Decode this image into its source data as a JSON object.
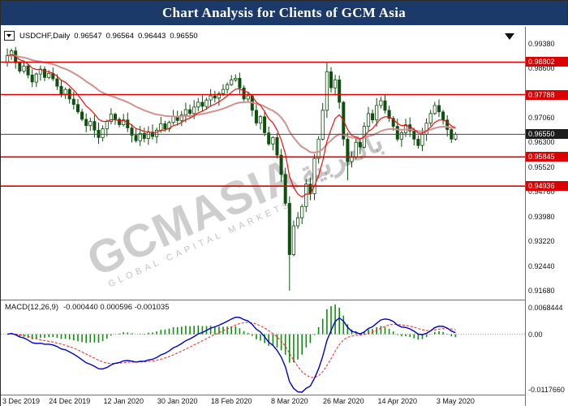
{
  "title_bar": {
    "title": "Chart Analysis for Clients of GCM Asia",
    "bg": "#1b3a6a"
  },
  "symbol_info": {
    "symbol": "USDCHF,Daily",
    "open": "0.96547",
    "high": "0.96564",
    "low": "0.96443",
    "close": "0.96550"
  },
  "watermark": {
    "main": "GCMASIA",
    "arabic": "بالعربية",
    "sub": "GLOBAL CAPITAL MARKETS"
  },
  "colors": {
    "title_bg": "#1b3a6a",
    "bull": "#ffffff",
    "bear": "#0f4f0f",
    "wick": "#0f4f0f",
    "ma_fast": "#ee1111",
    "ma_slow": "#d49090",
    "level": "#e00000",
    "current": "#444444",
    "macd_line": "#0000cc",
    "signal_line": "#ee3333",
    "histogram": "#0f8f0f",
    "badge_red": "#dd0000",
    "badge_dark": "#1c1c1c"
  },
  "chart_data": {
    "type": "candlestick",
    "symbol": "USDCHF",
    "timeframe": "Daily",
    "ohlc_current": {
      "open": 0.96547,
      "high": 0.96564,
      "low": 0.96443,
      "close": 0.9655
    },
    "current_price": 0.9655,
    "horizontal_lines": [
      0.98802,
      0.97788,
      0.95845,
      0.94936
    ],
    "y_axis_ticks": [
      "0.99380",
      "0.98600",
      "0.97060",
      "0.96300",
      "0.95520",
      "0.94760",
      "0.93980",
      "0.93220",
      "0.92440",
      "0.91680"
    ],
    "scale": {
      "price_top": 0.9975,
      "price_bottom": 0.915
    },
    "x_labels": [
      {
        "i": 0,
        "t": "3 Dec 2019"
      },
      {
        "i": 15,
        "t": "24 Dec 2019"
      },
      {
        "i": 28,
        "t": "12 Jan 2020"
      },
      {
        "i": 41,
        "t": "30 Jan 2020"
      },
      {
        "i": 54,
        "t": "18 Feb 2020"
      },
      {
        "i": 68,
        "t": "8 Mar 2020"
      },
      {
        "i": 81,
        "t": "26 Mar 2020"
      },
      {
        "i": 94,
        "t": "14 Apr 2020"
      },
      {
        "i": 108,
        "t": "3 May 2020"
      }
    ],
    "first_open": 0.988,
    "closes": [
      0.99,
      0.9915,
      0.9878,
      0.9852,
      0.9868,
      0.984,
      0.9818,
      0.9843,
      0.9858,
      0.9832,
      0.9845,
      0.9828,
      0.9805,
      0.978,
      0.9795,
      0.9765,
      0.9748,
      0.9725,
      0.9702,
      0.9682,
      0.9695,
      0.9668,
      0.9645,
      0.9672,
      0.9695,
      0.9718,
      0.9702,
      0.9685,
      0.97,
      0.9675,
      0.9652,
      0.9635,
      0.9658,
      0.9642,
      0.9662,
      0.9648,
      0.9668,
      0.9688,
      0.9672,
      0.9692,
      0.9712,
      0.9698,
      0.9715,
      0.9732,
      0.972,
      0.974,
      0.9755,
      0.9742,
      0.9762,
      0.9775,
      0.9768,
      0.9782,
      0.9795,
      0.981,
      0.9825,
      0.983,
      0.98,
      0.9765,
      0.9775,
      0.973,
      0.969,
      0.971,
      0.966,
      0.9625,
      0.9645,
      0.959,
      0.953,
      0.944,
      0.928,
      0.937,
      0.9395,
      0.943,
      0.95,
      0.947,
      0.958,
      0.964,
      0.973,
      0.985,
      0.98,
      0.9825,
      0.9755,
      0.964,
      0.957,
      0.9585,
      0.963,
      0.9615,
      0.968,
      0.972,
      0.97,
      0.9745,
      0.976,
      0.973,
      0.9705,
      0.968,
      0.964,
      0.966,
      0.9685,
      0.9665,
      0.964,
      0.962,
      0.9655,
      0.969,
      0.972,
      0.9745,
      0.9725,
      0.97,
      0.967,
      0.964,
      0.9655
    ],
    "wick_overrides": {
      "1": {
        "high": 0.9922
      },
      "68": {
        "low": 0.9168
      },
      "77": {
        "high": 0.9881
      },
      "82": {
        "low": 0.9512
      }
    },
    "ma": [
      {
        "period": 30,
        "color_key": "ma_slow",
        "width": 2
      },
      {
        "period": 8,
        "color_key": "ma_fast",
        "width": 1.2
      }
    ],
    "macd": {
      "label": "MACD(12,26,9)",
      "params": [
        12,
        26,
        9
      ],
      "values": [
        -0.00044,
        0.000596,
        -0.001035
      ],
      "values_text": "-0.000440 0.000596 -0.001035",
      "axis_labels": {
        "top": "0.0068444",
        "zero": "0.00",
        "bottom": "-0.0117660"
      }
    }
  }
}
